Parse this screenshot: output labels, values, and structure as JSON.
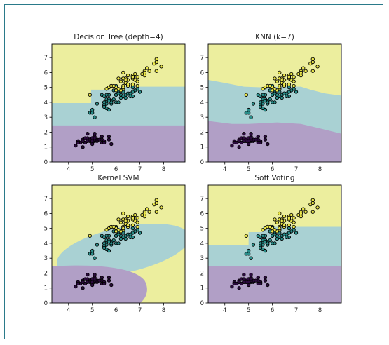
{
  "colors": {
    "class0_region": "#b19fc6",
    "class1_region": "#a9d1d3",
    "class2_region": "#ecee9e",
    "class0_point": "#2b0a3d",
    "class1_point": "#2b8f8b",
    "class2_point": "#ece84a",
    "point_edge": "#000000"
  },
  "chart_data": [
    {
      "type": "scatter",
      "title": "Decision Tree (depth=4)",
      "xlabel": "",
      "ylabel": "",
      "xlim": [
        3.3,
        8.9
      ],
      "ylim": [
        0,
        7.9
      ],
      "x_ticks": [
        "4",
        "5",
        "6",
        "7",
        "8"
      ],
      "y_ticks": [
        "0",
        "1",
        "2",
        "3",
        "4",
        "5",
        "6",
        "7"
      ],
      "grid": false,
      "decision_regions": "axis-aligned steps: class 0 below y≈2.45; class 1 from 2.45 to ≈3.95 (x<4.95) or to ≈4.85/5.1 (x≥4.95); class 2 above"
    },
    {
      "type": "scatter",
      "title": "KNN (k=7)",
      "xlabel": "",
      "ylabel": "",
      "xlim": [
        3.3,
        8.9
      ],
      "ylim": [
        0,
        7.9
      ],
      "x_ticks": [
        "4",
        "5",
        "6",
        "7",
        "8"
      ],
      "y_ticks": [
        "0",
        "1",
        "2",
        "3",
        "4",
        "5",
        "6",
        "7"
      ],
      "grid": false,
      "decision_regions": "smooth boundaries: class 0 below ≈2.7 sloping down to ≈1.9 at right; class 1 between; class 2 above ≈5.5 at left dipping to ≈4.5 at right"
    },
    {
      "type": "scatter",
      "title": "Kernel SVM",
      "xlabel": "",
      "ylabel": "",
      "xlim": [
        3.3,
        8.9
      ],
      "ylim": [
        0,
        7.9
      ],
      "x_ticks": [
        "4",
        "5",
        "6",
        "7",
        "8"
      ],
      "y_ticks": [
        "0",
        "1",
        "2",
        "3",
        "4",
        "5",
        "6",
        "7"
      ],
      "grid": false,
      "decision_regions": "curved: class 0 bubble in lower-left (y<2.5, x<7.4); class 1 elliptical band around the middle cluster; class 2 elsewhere"
    },
    {
      "type": "scatter",
      "title": "Soft Voting",
      "xlabel": "",
      "ylabel": "",
      "xlim": [
        3.3,
        8.9
      ],
      "ylim": [
        0,
        7.9
      ],
      "x_ticks": [
        "4",
        "5",
        "6",
        "7",
        "8"
      ],
      "y_ticks": [
        "0",
        "1",
        "2",
        "3",
        "4",
        "5",
        "6",
        "7"
      ],
      "grid": false,
      "decision_regions": "axis-aligned steps similar to decision tree: class 0 below ≈2.45; class 1 to ≈3.9 (x<5.0) or ≈5.1 (x≥5.0); class 2 above"
    }
  ],
  "points": [
    {
      "x": 5.0,
      "y": 1.4,
      "c": 0
    },
    {
      "x": 4.9,
      "y": 1.4,
      "c": 0
    },
    {
      "x": 4.7,
      "y": 1.3,
      "c": 0
    },
    {
      "x": 4.6,
      "y": 1.5,
      "c": 0
    },
    {
      "x": 5.0,
      "y": 1.4,
      "c": 0
    },
    {
      "x": 5.4,
      "y": 1.7,
      "c": 0
    },
    {
      "x": 4.6,
      "y": 1.4,
      "c": 0
    },
    {
      "x": 5.0,
      "y": 1.5,
      "c": 0
    },
    {
      "x": 4.4,
      "y": 1.4,
      "c": 0
    },
    {
      "x": 4.9,
      "y": 1.5,
      "c": 0
    },
    {
      "x": 5.4,
      "y": 1.5,
      "c": 0
    },
    {
      "x": 4.8,
      "y": 1.6,
      "c": 0
    },
    {
      "x": 4.8,
      "y": 1.4,
      "c": 0
    },
    {
      "x": 4.3,
      "y": 1.1,
      "c": 0
    },
    {
      "x": 5.8,
      "y": 1.2,
      "c": 0
    },
    {
      "x": 5.7,
      "y": 1.5,
      "c": 0
    },
    {
      "x": 5.4,
      "y": 1.3,
      "c": 0
    },
    {
      "x": 5.1,
      "y": 1.4,
      "c": 0
    },
    {
      "x": 5.7,
      "y": 1.7,
      "c": 0
    },
    {
      "x": 5.1,
      "y": 1.5,
      "c": 0
    },
    {
      "x": 5.4,
      "y": 1.7,
      "c": 0
    },
    {
      "x": 5.1,
      "y": 1.5,
      "c": 0
    },
    {
      "x": 4.6,
      "y": 1.0,
      "c": 0
    },
    {
      "x": 5.1,
      "y": 1.7,
      "c": 0
    },
    {
      "x": 4.8,
      "y": 1.9,
      "c": 0
    },
    {
      "x": 5.0,
      "y": 1.6,
      "c": 0
    },
    {
      "x": 5.0,
      "y": 1.6,
      "c": 0
    },
    {
      "x": 5.2,
      "y": 1.5,
      "c": 0
    },
    {
      "x": 5.2,
      "y": 1.4,
      "c": 0
    },
    {
      "x": 4.7,
      "y": 1.6,
      "c": 0
    },
    {
      "x": 4.8,
      "y": 1.6,
      "c": 0
    },
    {
      "x": 5.4,
      "y": 1.5,
      "c": 0
    },
    {
      "x": 5.2,
      "y": 1.5,
      "c": 0
    },
    {
      "x": 5.5,
      "y": 1.4,
      "c": 0
    },
    {
      "x": 4.9,
      "y": 1.5,
      "c": 0
    },
    {
      "x": 5.0,
      "y": 1.2,
      "c": 0
    },
    {
      "x": 5.5,
      "y": 1.3,
      "c": 0
    },
    {
      "x": 4.9,
      "y": 1.4,
      "c": 0
    },
    {
      "x": 4.4,
      "y": 1.3,
      "c": 0
    },
    {
      "x": 5.1,
      "y": 1.5,
      "c": 0
    },
    {
      "x": 5.0,
      "y": 1.3,
      "c": 0
    },
    {
      "x": 4.5,
      "y": 1.3,
      "c": 0
    },
    {
      "x": 4.4,
      "y": 1.3,
      "c": 0
    },
    {
      "x": 5.0,
      "y": 1.6,
      "c": 0
    },
    {
      "x": 5.1,
      "y": 1.9,
      "c": 0
    },
    {
      "x": 4.8,
      "y": 1.4,
      "c": 0
    },
    {
      "x": 5.1,
      "y": 1.6,
      "c": 0
    },
    {
      "x": 4.6,
      "y": 1.4,
      "c": 0
    },
    {
      "x": 5.3,
      "y": 1.5,
      "c": 0
    },
    {
      "x": 5.0,
      "y": 1.4,
      "c": 0
    },
    {
      "x": 7.0,
      "y": 4.7,
      "c": 1
    },
    {
      "x": 6.4,
      "y": 4.5,
      "c": 1
    },
    {
      "x": 6.9,
      "y": 4.9,
      "c": 1
    },
    {
      "x": 5.5,
      "y": 4.0,
      "c": 1
    },
    {
      "x": 6.5,
      "y": 4.6,
      "c": 1
    },
    {
      "x": 5.7,
      "y": 4.5,
      "c": 1
    },
    {
      "x": 6.3,
      "y": 4.7,
      "c": 1
    },
    {
      "x": 4.9,
      "y": 3.3,
      "c": 1
    },
    {
      "x": 6.6,
      "y": 4.6,
      "c": 1
    },
    {
      "x": 5.2,
      "y": 3.9,
      "c": 1
    },
    {
      "x": 5.0,
      "y": 3.5,
      "c": 1
    },
    {
      "x": 5.9,
      "y": 4.2,
      "c": 1
    },
    {
      "x": 6.0,
      "y": 4.0,
      "c": 1
    },
    {
      "x": 6.1,
      "y": 4.7,
      "c": 1
    },
    {
      "x": 5.6,
      "y": 3.6,
      "c": 1
    },
    {
      "x": 6.7,
      "y": 4.4,
      "c": 1
    },
    {
      "x": 5.6,
      "y": 4.5,
      "c": 1
    },
    {
      "x": 5.8,
      "y": 4.1,
      "c": 1
    },
    {
      "x": 6.2,
      "y": 4.5,
      "c": 1
    },
    {
      "x": 5.6,
      "y": 3.9,
      "c": 1
    },
    {
      "x": 5.9,
      "y": 4.8,
      "c": 1
    },
    {
      "x": 6.1,
      "y": 4.0,
      "c": 1
    },
    {
      "x": 6.3,
      "y": 4.9,
      "c": 1
    },
    {
      "x": 6.1,
      "y": 4.7,
      "c": 1
    },
    {
      "x": 6.4,
      "y": 4.3,
      "c": 1
    },
    {
      "x": 6.6,
      "y": 4.4,
      "c": 1
    },
    {
      "x": 6.8,
      "y": 4.8,
      "c": 1
    },
    {
      "x": 6.7,
      "y": 5.0,
      "c": 1
    },
    {
      "x": 6.0,
      "y": 4.5,
      "c": 1
    },
    {
      "x": 5.7,
      "y": 3.5,
      "c": 1
    },
    {
      "x": 5.5,
      "y": 3.8,
      "c": 1
    },
    {
      "x": 5.5,
      "y": 3.7,
      "c": 1
    },
    {
      "x": 5.8,
      "y": 3.9,
      "c": 1
    },
    {
      "x": 6.0,
      "y": 5.1,
      "c": 1
    },
    {
      "x": 5.4,
      "y": 4.5,
      "c": 1
    },
    {
      "x": 6.0,
      "y": 4.5,
      "c": 1
    },
    {
      "x": 6.7,
      "y": 4.7,
      "c": 1
    },
    {
      "x": 6.3,
      "y": 4.4,
      "c": 1
    },
    {
      "x": 5.6,
      "y": 4.1,
      "c": 1
    },
    {
      "x": 5.5,
      "y": 4.0,
      "c": 1
    },
    {
      "x": 5.5,
      "y": 4.4,
      "c": 1
    },
    {
      "x": 6.1,
      "y": 4.6,
      "c": 1
    },
    {
      "x": 5.8,
      "y": 4.0,
      "c": 1
    },
    {
      "x": 5.0,
      "y": 3.3,
      "c": 1
    },
    {
      "x": 5.6,
      "y": 4.2,
      "c": 1
    },
    {
      "x": 5.7,
      "y": 4.2,
      "c": 1
    },
    {
      "x": 5.7,
      "y": 4.2,
      "c": 1
    },
    {
      "x": 6.2,
      "y": 4.3,
      "c": 1
    },
    {
      "x": 5.1,
      "y": 3.0,
      "c": 1
    },
    {
      "x": 5.7,
      "y": 4.1,
      "c": 1
    },
    {
      "x": 6.3,
      "y": 6.0,
      "c": 2
    },
    {
      "x": 5.8,
      "y": 5.1,
      "c": 2
    },
    {
      "x": 7.1,
      "y": 5.9,
      "c": 2
    },
    {
      "x": 6.3,
      "y": 5.6,
      "c": 2
    },
    {
      "x": 6.5,
      "y": 5.8,
      "c": 2
    },
    {
      "x": 7.6,
      "y": 6.6,
      "c": 2
    },
    {
      "x": 4.9,
      "y": 4.5,
      "c": 2
    },
    {
      "x": 7.3,
      "y": 6.3,
      "c": 2
    },
    {
      "x": 6.7,
      "y": 5.8,
      "c": 2
    },
    {
      "x": 7.2,
      "y": 6.1,
      "c": 2
    },
    {
      "x": 6.5,
      "y": 5.1,
      "c": 2
    },
    {
      "x": 6.4,
      "y": 5.3,
      "c": 2
    },
    {
      "x": 6.8,
      "y": 5.5,
      "c": 2
    },
    {
      "x": 5.7,
      "y": 5.0,
      "c": 2
    },
    {
      "x": 5.8,
      "y": 5.1,
      "c": 2
    },
    {
      "x": 6.4,
      "y": 5.3,
      "c": 2
    },
    {
      "x": 6.5,
      "y": 5.5,
      "c": 2
    },
    {
      "x": 7.7,
      "y": 6.7,
      "c": 2
    },
    {
      "x": 7.7,
      "y": 6.9,
      "c": 2
    },
    {
      "x": 6.0,
      "y": 5.0,
      "c": 2
    },
    {
      "x": 6.9,
      "y": 5.7,
      "c": 2
    },
    {
      "x": 5.6,
      "y": 4.9,
      "c": 2
    },
    {
      "x": 7.7,
      "y": 6.7,
      "c": 2
    },
    {
      "x": 6.3,
      "y": 4.9,
      "c": 2
    },
    {
      "x": 6.7,
      "y": 5.7,
      "c": 2
    },
    {
      "x": 7.2,
      "y": 6.0,
      "c": 2
    },
    {
      "x": 6.2,
      "y": 4.8,
      "c": 2
    },
    {
      "x": 6.1,
      "y": 4.9,
      "c": 2
    },
    {
      "x": 6.4,
      "y": 5.6,
      "c": 2
    },
    {
      "x": 7.2,
      "y": 5.8,
      "c": 2
    },
    {
      "x": 7.4,
      "y": 6.1,
      "c": 2
    },
    {
      "x": 7.9,
      "y": 6.4,
      "c": 2
    },
    {
      "x": 6.4,
      "y": 5.6,
      "c": 2
    },
    {
      "x": 6.3,
      "y": 5.1,
      "c": 2
    },
    {
      "x": 6.1,
      "y": 5.6,
      "c": 2
    },
    {
      "x": 7.7,
      "y": 6.1,
      "c": 2
    },
    {
      "x": 6.3,
      "y": 5.6,
      "c": 2
    },
    {
      "x": 6.4,
      "y": 5.5,
      "c": 2
    },
    {
      "x": 6.0,
      "y": 4.8,
      "c": 2
    },
    {
      "x": 6.9,
      "y": 5.4,
      "c": 2
    },
    {
      "x": 6.7,
      "y": 5.6,
      "c": 2
    },
    {
      "x": 6.9,
      "y": 5.1,
      "c": 2
    },
    {
      "x": 5.8,
      "y": 5.1,
      "c": 2
    },
    {
      "x": 6.8,
      "y": 5.9,
      "c": 2
    },
    {
      "x": 6.7,
      "y": 5.7,
      "c": 2
    },
    {
      "x": 6.7,
      "y": 5.2,
      "c": 2
    },
    {
      "x": 6.3,
      "y": 5.0,
      "c": 2
    },
    {
      "x": 6.5,
      "y": 5.2,
      "c": 2
    },
    {
      "x": 6.2,
      "y": 5.4,
      "c": 2
    },
    {
      "x": 5.9,
      "y": 5.1,
      "c": 2
    }
  ]
}
